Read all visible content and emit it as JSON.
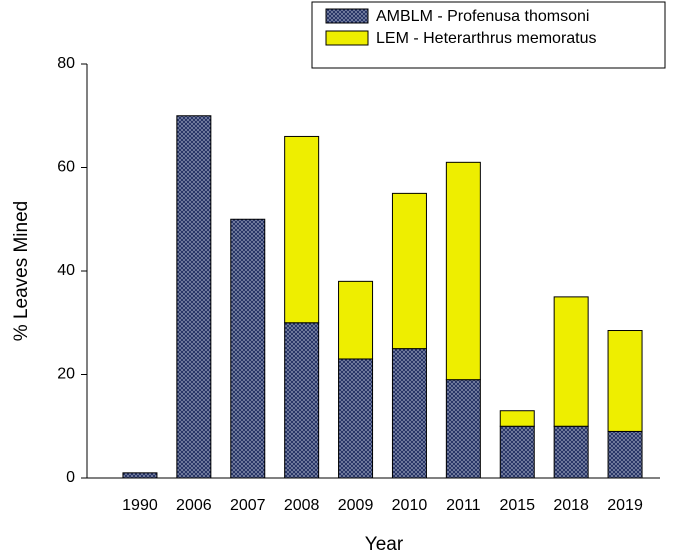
{
  "chart_data": {
    "type": "stacked_bar",
    "x_label": "Year",
    "y_label": "% Leaves Mined",
    "categories": [
      "1990",
      "2006",
      "2007",
      "2008",
      "2009",
      "2010",
      "2011",
      "2015",
      "2018",
      "2019"
    ],
    "series": [
      {
        "name": "AMBLM - Profenusa thomsoni",
        "color": "#1c2a5e",
        "values": [
          1,
          70,
          50,
          30,
          23,
          25,
          19,
          10,
          10,
          9
        ]
      },
      {
        "name": "LEM - Heterarthrus memoratus",
        "color": "#eeee00",
        "values": [
          0,
          0,
          0,
          36,
          15,
          30,
          42,
          3,
          25,
          19.5
        ]
      }
    ],
    "ylim": [
      0,
      80
    ],
    "yticks": [
      0,
      20,
      40,
      60,
      80
    ],
    "legend": "upper right"
  }
}
